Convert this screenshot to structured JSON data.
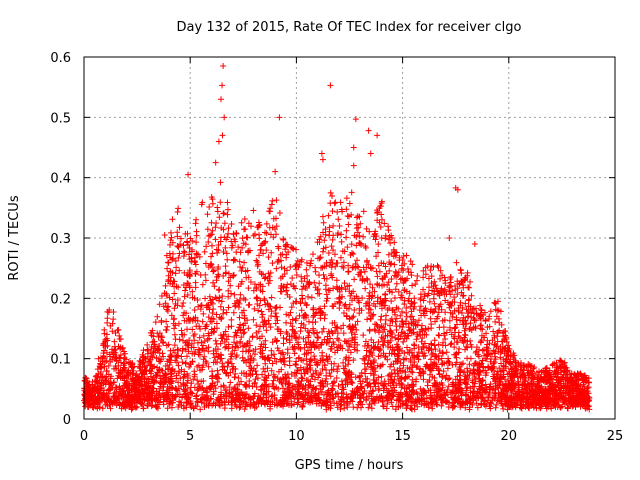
{
  "chart_data": {
    "type": "scatter",
    "title": "Day 132 of 2015, Rate Of TEC Index for receiver clgo",
    "xlabel": "GPS time / hours",
    "ylabel": "ROTI / TECUs",
    "xlim": [
      0,
      25
    ],
    "ylim": [
      0,
      0.6
    ],
    "xticks": [
      "0",
      "5",
      "10",
      "15",
      "20",
      "25"
    ],
    "yticks": [
      "0",
      "0.1",
      "0.2",
      "0.3",
      "0.4",
      "0.5",
      "0.6"
    ],
    "grid": true,
    "marker": "+",
    "color": "#ff0000",
    "series": [
      {
        "name": "ROTI",
        "x_range": [
          0,
          23.8
        ],
        "envelope": [
          [
            0.0,
            0.07
          ],
          [
            0.5,
            0.06
          ],
          [
            1.0,
            0.17
          ],
          [
            1.4,
            0.2
          ],
          [
            2.0,
            0.1
          ],
          [
            2.5,
            0.09
          ],
          [
            3.0,
            0.13
          ],
          [
            3.5,
            0.18
          ],
          [
            4.0,
            0.32
          ],
          [
            4.5,
            0.37
          ],
          [
            5.0,
            0.3
          ],
          [
            5.5,
            0.36
          ],
          [
            6.0,
            0.38
          ],
          [
            6.5,
            0.4
          ],
          [
            7.0,
            0.32
          ],
          [
            7.5,
            0.33
          ],
          [
            8.0,
            0.35
          ],
          [
            8.5,
            0.32
          ],
          [
            9.0,
            0.38
          ],
          [
            9.5,
            0.3
          ],
          [
            10.0,
            0.28
          ],
          [
            10.5,
            0.26
          ],
          [
            11.0,
            0.3
          ],
          [
            11.5,
            0.38
          ],
          [
            12.0,
            0.36
          ],
          [
            12.5,
            0.38
          ],
          [
            13.0,
            0.36
          ],
          [
            13.5,
            0.33
          ],
          [
            14.0,
            0.37
          ],
          [
            14.5,
            0.3
          ],
          [
            15.0,
            0.28
          ],
          [
            15.5,
            0.26
          ],
          [
            16.0,
            0.25
          ],
          [
            16.5,
            0.26
          ],
          [
            17.0,
            0.24
          ],
          [
            17.5,
            0.26
          ],
          [
            18.0,
            0.25
          ],
          [
            18.5,
            0.2
          ],
          [
            19.0,
            0.18
          ],
          [
            19.5,
            0.2
          ],
          [
            20.0,
            0.12
          ],
          [
            20.5,
            0.1
          ],
          [
            21.0,
            0.09
          ],
          [
            21.5,
            0.08
          ],
          [
            22.0,
            0.09
          ],
          [
            22.5,
            0.1
          ],
          [
            23.0,
            0.08
          ],
          [
            23.8,
            0.07
          ]
        ],
        "outliers": [
          [
            6.55,
            0.585
          ],
          [
            6.5,
            0.553
          ],
          [
            6.45,
            0.53
          ],
          [
            6.6,
            0.5
          ],
          [
            6.52,
            0.47
          ],
          [
            6.35,
            0.46
          ],
          [
            6.2,
            0.425
          ],
          [
            9.2,
            0.5
          ],
          [
            11.6,
            0.553
          ],
          [
            12.8,
            0.497
          ],
          [
            12.7,
            0.45
          ],
          [
            13.4,
            0.478
          ],
          [
            13.8,
            0.47
          ],
          [
            13.5,
            0.44
          ],
          [
            11.2,
            0.44
          ],
          [
            11.25,
            0.43
          ],
          [
            4.9,
            0.405
          ],
          [
            9.0,
            0.41
          ],
          [
            12.7,
            0.42
          ],
          [
            17.5,
            0.383
          ],
          [
            17.6,
            0.38
          ],
          [
            18.4,
            0.29
          ],
          [
            17.2,
            0.3
          ],
          [
            3.8,
            0.305
          ]
        ]
      }
    ]
  }
}
